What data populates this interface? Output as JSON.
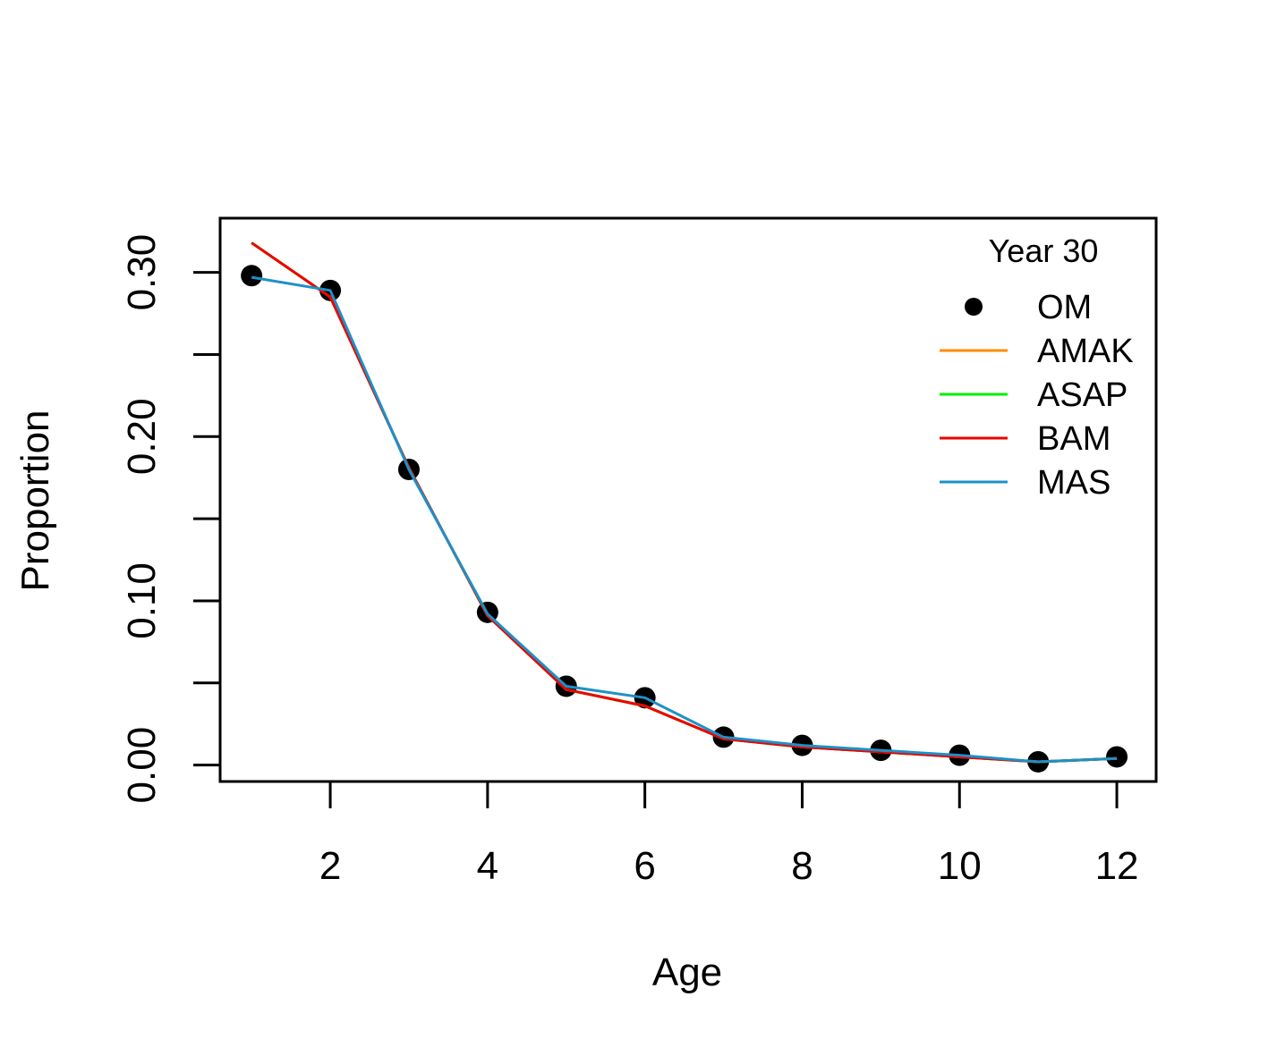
{
  "chart_data": {
    "type": "line",
    "title": "",
    "legend_title": "Year 30",
    "legend_position": "top-right",
    "xlabel": "Age",
    "ylabel": "Proportion",
    "xlim": [
      0.6,
      12.5
    ],
    "ylim": [
      -0.01,
      0.333
    ],
    "x_ticks": [
      2,
      4,
      6,
      8,
      10,
      12
    ],
    "x_tick_labels": [
      "2",
      "4",
      "6",
      "8",
      "10",
      "12"
    ],
    "y_ticks": [
      0.0,
      0.05,
      0.1,
      0.15,
      0.2,
      0.25,
      0.3
    ],
    "y_tick_labels": [
      "0.00",
      "",
      "0.10",
      "",
      "0.20",
      "",
      "0.30"
    ],
    "x": [
      1,
      2,
      3,
      4,
      5,
      6,
      7,
      8,
      9,
      10,
      11,
      12
    ],
    "series": [
      {
        "name": "OM",
        "style": "points",
        "color": "#000000",
        "values": [
          0.298,
          0.289,
          0.18,
          0.093,
          0.048,
          0.041,
          0.017,
          0.012,
          0.009,
          0.006,
          0.002,
          0.005
        ]
      },
      {
        "name": "AMAK",
        "style": "line",
        "color": "#ff8c00",
        "values": [
          0.318,
          0.285,
          0.181,
          0.091,
          0.046,
          0.036,
          0.016,
          0.011,
          0.008,
          0.005,
          0.002,
          0.004
        ]
      },
      {
        "name": "ASAP",
        "style": "line",
        "color": "#00ee00",
        "values": [
          0.318,
          0.285,
          0.181,
          0.091,
          0.046,
          0.036,
          0.016,
          0.011,
          0.008,
          0.005,
          0.002,
          0.004
        ]
      },
      {
        "name": "BAM",
        "style": "line",
        "color": "#ee0000",
        "values": [
          0.318,
          0.285,
          0.181,
          0.091,
          0.046,
          0.036,
          0.016,
          0.011,
          0.008,
          0.005,
          0.002,
          0.004
        ]
      },
      {
        "name": "MAS",
        "style": "line",
        "color": "#1e90c8",
        "values": [
          0.297,
          0.289,
          0.18,
          0.092,
          0.048,
          0.041,
          0.017,
          0.012,
          0.009,
          0.006,
          0.002,
          0.004
        ]
      }
    ]
  }
}
